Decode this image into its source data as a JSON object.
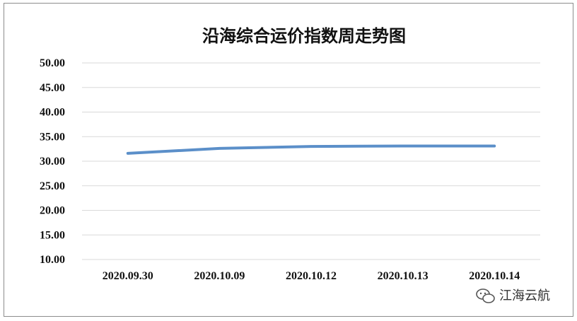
{
  "chart_data": {
    "type": "line",
    "title": "沿海综合运价指数周走势图",
    "xlabel": "",
    "ylabel": "",
    "categories": [
      "2020.09.30",
      "2020.10.09",
      "2020.10.12",
      "2020.10.13",
      "2020.10.14"
    ],
    "series": [
      {
        "values": [
          31.6,
          32.6,
          33.0,
          33.1,
          33.1
        ]
      }
    ],
    "ylim": [
      10,
      50
    ],
    "yticks": [
      "10.00",
      "15.00",
      "20.00",
      "25.00",
      "30.00",
      "35.00",
      "40.00",
      "45.00",
      "50.00"
    ],
    "grid": true,
    "legend": "none",
    "colors": {
      "series": "#5b8fc9",
      "grid": "#d9d9d9"
    }
  },
  "watermark": {
    "text": "江海云航",
    "icon": "wechat-icon"
  }
}
